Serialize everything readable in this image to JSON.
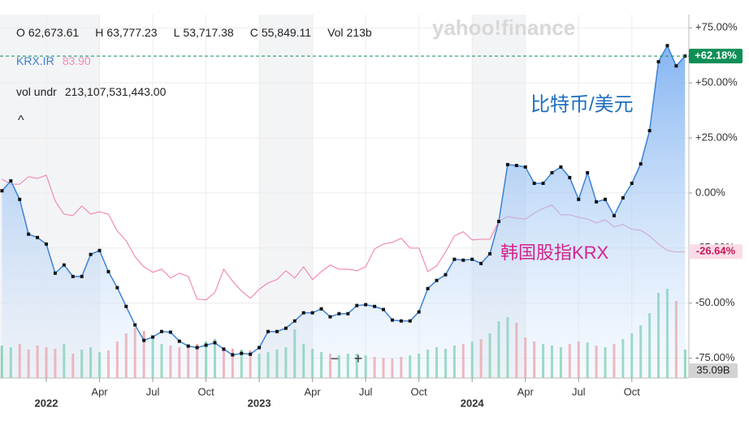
{
  "header": {
    "ohlc": [
      {
        "label": "O",
        "value": "62,673.61"
      },
      {
        "label": "H",
        "value": "63,777.23"
      },
      {
        "label": "L",
        "value": "53,717.38"
      },
      {
        "label": "C",
        "value": "55,849.11"
      },
      {
        "label": "Vol",
        "value": "213b"
      }
    ],
    "compare_symbol": "KRX.IR",
    "compare_value": "83.90",
    "vol_label": "vol undr",
    "vol_value": "213,107,531,443.00",
    "collapse": "^",
    "watermark": "yahoo!finance"
  },
  "zoom": {
    "out": "−",
    "in": "+"
  },
  "chart_data": {
    "type": "line",
    "categories": [
      null,
      null,
      null,
      null,
      null,
      "2022",
      null,
      null,
      null,
      null,
      null,
      "Apr",
      null,
      null,
      null,
      null,
      null,
      "Jul",
      null,
      null,
      null,
      null,
      null,
      "Oct",
      null,
      null,
      null,
      null,
      null,
      "2023",
      null,
      null,
      null,
      null,
      null,
      "Apr",
      null,
      null,
      null,
      null,
      null,
      "Jul",
      null,
      null,
      null,
      null,
      null,
      "Oct",
      null,
      null,
      null,
      null,
      null,
      "2024",
      null,
      null,
      null,
      null,
      null,
      "Apr",
      null,
      null,
      null,
      null,
      null,
      "Jul",
      null,
      null,
      null,
      null,
      null,
      "Oct",
      null,
      null,
      null,
      null,
      null,
      null
    ],
    "ylim": [
      -84,
      81
    ],
    "yticks": [
      {
        "value": 75,
        "label": "+75.00%"
      },
      {
        "value": 50,
        "label": "+50.00%"
      },
      {
        "value": 25,
        "label": "+25.00%"
      },
      {
        "value": 0,
        "label": "0.00%"
      },
      {
        "value": -25,
        "label": "-25.00%"
      },
      {
        "value": -50,
        "label": "-50.00%"
      },
      {
        "value": -75,
        "label": "-75.00%"
      }
    ],
    "series": [
      {
        "name": "比特币/美元",
        "color": "#3b82d8",
        "marker_color": "#111111",
        "area": true,
        "last_label": "+62.18%",
        "badge_color": "#0e8f55",
        "values": [
          1,
          5.5,
          -2.9,
          -18.7,
          -20.2,
          -23.2,
          -36.4,
          -32.7,
          -37.9,
          -37.9,
          -27.9,
          -26.1,
          -35.7,
          -43,
          -51.5,
          -59.9,
          -66.9,
          -65.4,
          -62.9,
          -63.2,
          -67.3,
          -69.5,
          -70.2,
          -69.1,
          -68,
          -70.9,
          -73.5,
          -72.8,
          -73.2,
          -70.2,
          -62.9,
          -62.9,
          -61.4,
          -58.1,
          -54.4,
          -54.4,
          -52.6,
          -56.2,
          -54.8,
          -54.8,
          -51.1,
          -50.7,
          -51.5,
          -52.9,
          -57.7,
          -58.1,
          -58.1,
          -54,
          -43.4,
          -39.7,
          -37.1,
          -30.1,
          -30.5,
          -30.1,
          -32,
          -27.6,
          -12.9,
          12.9,
          12.5,
          11.8,
          4.4,
          4.4,
          9.2,
          11.8,
          7,
          -2.9,
          9.2,
          -4,
          -2.9,
          -10.3,
          -2.2,
          4.4,
          13.2,
          28.3,
          59.6,
          66.9,
          57.7,
          62.18
        ]
      },
      {
        "name": "韩国股指KRX",
        "color": "#f08cb4",
        "last_label": "-26.64%",
        "badge_color": "#fbdbe7",
        "badge_text": "#c2185b",
        "values": [
          6.3,
          4,
          4,
          7.4,
          6.6,
          8.1,
          -3.7,
          -9.6,
          -10.3,
          -5.9,
          -9.6,
          -8.5,
          -9.6,
          -17.3,
          -21.7,
          -29,
          -33.5,
          -36,
          -34.6,
          -38.6,
          -36.4,
          -37.9,
          -48.2,
          -48.5,
          -45.2,
          -34.6,
          -40.1,
          -44.5,
          -47.8,
          -43.7,
          -40.8,
          -39.3,
          -35.3,
          -38.6,
          -33.5,
          -39.3,
          -35.7,
          -32.7,
          -34.6,
          -34.6,
          -35.3,
          -33.5,
          -25.4,
          -23.2,
          -22.4,
          -20.6,
          -25,
          -25,
          -35.7,
          -33.1,
          -26.8,
          -19.5,
          -17.6,
          -21.3,
          -21,
          -21,
          -12.9,
          -10.7,
          -11.4,
          -11.8,
          -9.2,
          -7,
          -5.5,
          -9.9,
          -9.9,
          -11,
          -11.8,
          -13.6,
          -12.1,
          -15.4,
          -14.3,
          -16.5,
          -16.9,
          -19.5,
          -23.2,
          -26.1,
          -26.8,
          -26.64
        ]
      }
    ],
    "volume": {
      "up_color": "#5cc79a",
      "down_color": "#f28a8a",
      "last_label": "35.09B",
      "values": [
        40,
        38,
        42,
        35,
        40,
        38,
        36,
        42,
        30,
        35,
        38,
        32,
        34,
        45,
        55,
        62,
        58,
        50,
        42,
        40,
        38,
        40,
        42,
        45,
        48,
        38,
        36,
        35,
        34,
        30,
        32,
        35,
        38,
        60,
        42,
        36,
        32,
        30,
        28,
        30,
        30,
        28,
        26,
        25,
        24,
        26,
        28,
        30,
        35,
        38,
        36,
        40,
        42,
        45,
        48,
        55,
        70,
        75,
        68,
        50,
        45,
        42,
        40,
        38,
        42,
        45,
        44,
        40,
        38,
        42,
        48,
        55,
        65,
        80,
        105,
        110,
        95,
        35.09
      ]
    },
    "grid": true
  }
}
